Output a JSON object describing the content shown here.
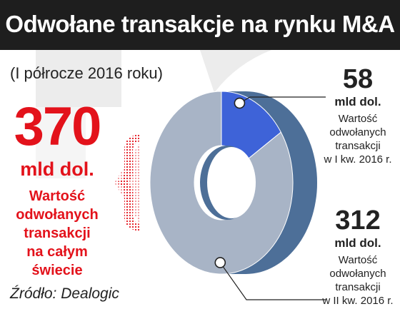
{
  "header": {
    "title": "Odwołane transakcje na rynku M&A"
  },
  "subtitle": "(I półrocze 2016 roku)",
  "total": {
    "value": "370",
    "unit": "mld dol.",
    "description_lines": [
      "Wartość",
      "odwołanych",
      "transakcji",
      "na całym",
      "świecie"
    ]
  },
  "source": "Źródło: Dealogic",
  "colors": {
    "header_bg": "#1e1e1e",
    "accent_red": "#e3121b",
    "q1_slice": "#3e63d8",
    "q2_slice": "#a8b4c6",
    "donut_side": "#4d6f98",
    "background_mark": "#e9e9e9"
  },
  "chart_data": {
    "type": "pie",
    "style": "3d-donut",
    "total": 370,
    "unit": "mld dol.",
    "slices": [
      {
        "value": 58,
        "label_value": "58",
        "unit": "mld dol.",
        "description_lines": [
          "Wartość",
          "odwołanych",
          "transakcji",
          "w I kw. 2016 r."
        ]
      },
      {
        "value": 312,
        "label_value": "312",
        "unit": "mld dol.",
        "description_lines": [
          "Wartość",
          "odwołanych",
          "transakcji",
          "w II kw. 2016 r."
        ]
      }
    ]
  }
}
